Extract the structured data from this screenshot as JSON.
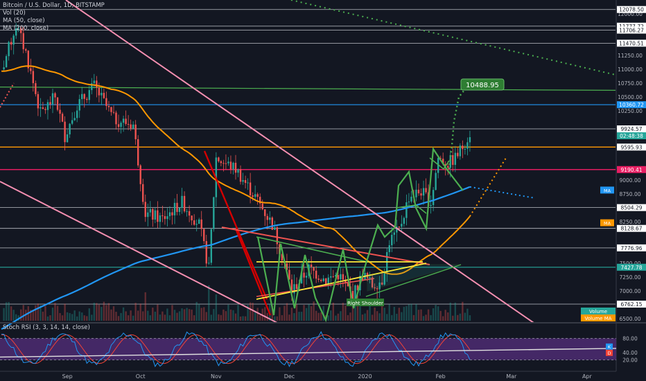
{
  "chart_data": {
    "type": "candlestick",
    "symbol_title": "Bitcoin / U.S. Dollar, 1D, BITSTAMP",
    "indicators": [
      "Vol (20)",
      "MA (50, close)",
      "MA (200, close)"
    ],
    "rsi_title": "Stoch RSI (3, 3, 14, 14, close)",
    "x_ticks": [
      "Sep",
      "Oct",
      "Nov",
      "Dec",
      "2020",
      "Feb",
      "Mar",
      "Apr"
    ],
    "price_ticks": [
      12000,
      11750,
      11250,
      11000,
      10750,
      10500,
      10250,
      9000,
      8750,
      8250,
      7500,
      7250,
      7000,
      6500
    ],
    "price_range": [
      6450,
      12200
    ],
    "price_labels": [
      {
        "value": 12078.5,
        "text": "12078.50",
        "color": "#ffffff",
        "tcolor": "#131722"
      },
      {
        "value": 11777.72,
        "text": "11777.72",
        "color": "#ffffff",
        "tcolor": "#131722"
      },
      {
        "value": 11706.27,
        "text": "11706.27",
        "color": "#ffffff",
        "tcolor": "#131722"
      },
      {
        "value": 11470.51,
        "text": "11470.51",
        "color": "#ffffff",
        "tcolor": "#131722"
      },
      {
        "value": 10360.72,
        "text": "10360.72",
        "color": "#2196f3",
        "tcolor": "#ffffff"
      },
      {
        "value": 9924.57,
        "text": "9924.57",
        "color": "#ffffff",
        "tcolor": "#131722"
      },
      {
        "value": 9800,
        "text": "02:48:38",
        "color": "#26a69a",
        "tcolor": "#ffffff"
      },
      {
        "value": 9595.93,
        "text": "9595.93",
        "color": "#ffffff",
        "tcolor": "#131722"
      },
      {
        "value": 9190.41,
        "text": "9190.41",
        "color": "#e91e63",
        "tcolor": "#ffffff"
      },
      {
        "value": 8504.29,
        "text": "8504.29",
        "color": "#ffffff",
        "tcolor": "#131722"
      },
      {
        "value": 8128.67,
        "text": "8128.67",
        "color": "#ffffff",
        "tcolor": "#131722"
      },
      {
        "value": 7776.96,
        "text": "7776.96",
        "color": "#ffffff",
        "tcolor": "#131722"
      },
      {
        "value": 7427.78,
        "text": "7427.78",
        "color": "#26a69a",
        "tcolor": "#ffffff"
      },
      {
        "value": 6762.15,
        "text": "6762.15",
        "color": "#ffffff",
        "tcolor": "#131722"
      }
    ],
    "side_tags": [
      {
        "value": 8820,
        "text": "MA",
        "color": "#2196f3"
      },
      {
        "value": 8230,
        "text": "MA",
        "color": "#ff9800"
      }
    ],
    "volume_tags": [
      {
        "text": "Volume",
        "color": "#26a69a",
        "y": 449
      },
      {
        "text": "Volume MA",
        "color": "#ff9800",
        "y": 459
      }
    ],
    "target_label": "10488.95",
    "pattern_label": "Right Shoulder",
    "rsi_ticks": [
      80,
      40,
      20
    ],
    "rsi_tags": [
      {
        "text": "K",
        "color": "#2196f3"
      },
      {
        "text": "D",
        "color": "#f44336"
      }
    ],
    "colors": {
      "up": "#26a69a",
      "down": "#ef5350",
      "ma50": "#ff9800",
      "ma200": "#2196f3",
      "pink": "#f48fb1",
      "green": "#4caf50",
      "yellow": "#ffeb3b",
      "red": "#d50000",
      "rsi_fill": "#4a2a6e"
    }
  }
}
